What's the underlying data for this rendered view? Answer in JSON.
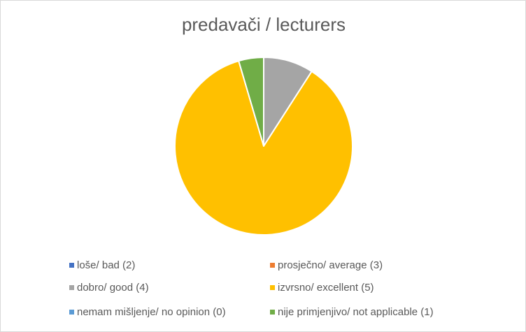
{
  "chart_data": {
    "type": "pie",
    "title": "predavači / lecturers",
    "categories": [
      "loše/ bad (2)",
      "prosječno/ average (3)",
      "dobro/ good (4)",
      "izvrsno/ excellent (5)",
      "nemam mišljenje/ no opinion (0)",
      "nije primjenjivo/ not applicable (1)"
    ],
    "values": [
      0,
      0,
      2,
      19,
      0,
      1
    ],
    "colors": [
      "#4472c4",
      "#ed7d31",
      "#a5a5a5",
      "#ffc000",
      "#5b9bd5",
      "#70ad47"
    ],
    "legend_position": "bottom",
    "start_angle": "top, clockwise"
  }
}
